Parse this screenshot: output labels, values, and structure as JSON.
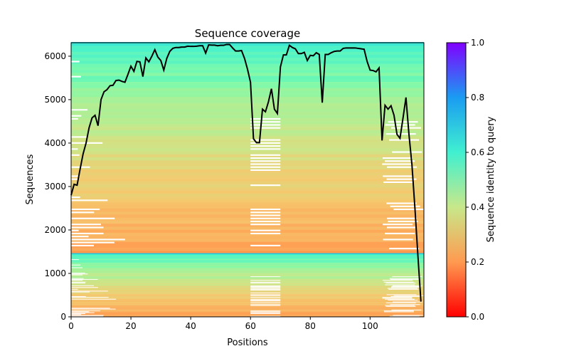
{
  "chart_data": {
    "type": "heatmap",
    "title": "Sequence coverage",
    "xlabel": "Positions",
    "ylabel": "Sequences",
    "xlim": [
      0,
      118
    ],
    "ylim": [
      0,
      6310
    ],
    "xticks": [
      0,
      20,
      40,
      60,
      80,
      100
    ],
    "yticks": [
      0,
      1000,
      2000,
      3000,
      4000,
      5000,
      6000
    ],
    "grid": false,
    "colorbar": {
      "label": "Sequence identity to query",
      "range": [
        0,
        1
      ],
      "ticks": [
        "0.0",
        "0.2",
        "0.4",
        "0.6",
        "0.8",
        "1.0"
      ],
      "colormap": "rainbow_r"
    },
    "msa_blocks": [
      {
        "from": 1450,
        "to": 6310,
        "identity_top": 0.62,
        "identity_bottom": 0.22
      },
      {
        "from": 0,
        "to": 1450,
        "identity_top": 0.6,
        "identity_bottom": 0.22
      }
    ],
    "coverage_line": {
      "color": "#000000",
      "values": [
        2800,
        3050,
        3030,
        3400,
        3750,
        4000,
        4350,
        4580,
        4640,
        4400,
        5000,
        5180,
        5230,
        5320,
        5330,
        5440,
        5450,
        5420,
        5400,
        5580,
        5770,
        5650,
        5880,
        5870,
        5530,
        5960,
        5870,
        6000,
        6150,
        5980,
        5900,
        5680,
        5950,
        6110,
        6180,
        6200,
        6200,
        6210,
        6210,
        6230,
        6225,
        6225,
        6230,
        6240,
        6240,
        6070,
        6260,
        6255,
        6255,
        6240,
        6250,
        6250,
        6270,
        6270,
        6190,
        6120,
        6120,
        6130,
        5950,
        5700,
        5400,
        4100,
        4010,
        4010,
        4780,
        4720,
        4950,
        5250,
        4780,
        4680,
        5750,
        6030,
        6030,
        6250,
        6200,
        6170,
        6060,
        6060,
        6090,
        5900,
        6020,
        6010,
        6080,
        6040,
        4930,
        6040,
        6040,
        6080,
        6110,
        6120,
        6120,
        6180,
        6190,
        6190,
        6190,
        6190,
        6180,
        6170,
        6160,
        5880,
        5680,
        5670,
        5640,
        5730,
        4060,
        4870,
        4780,
        4860,
        4640,
        4200,
        4110,
        4570,
        5050,
        4200,
        3500,
        2500,
        1400,
        350
      ]
    }
  }
}
